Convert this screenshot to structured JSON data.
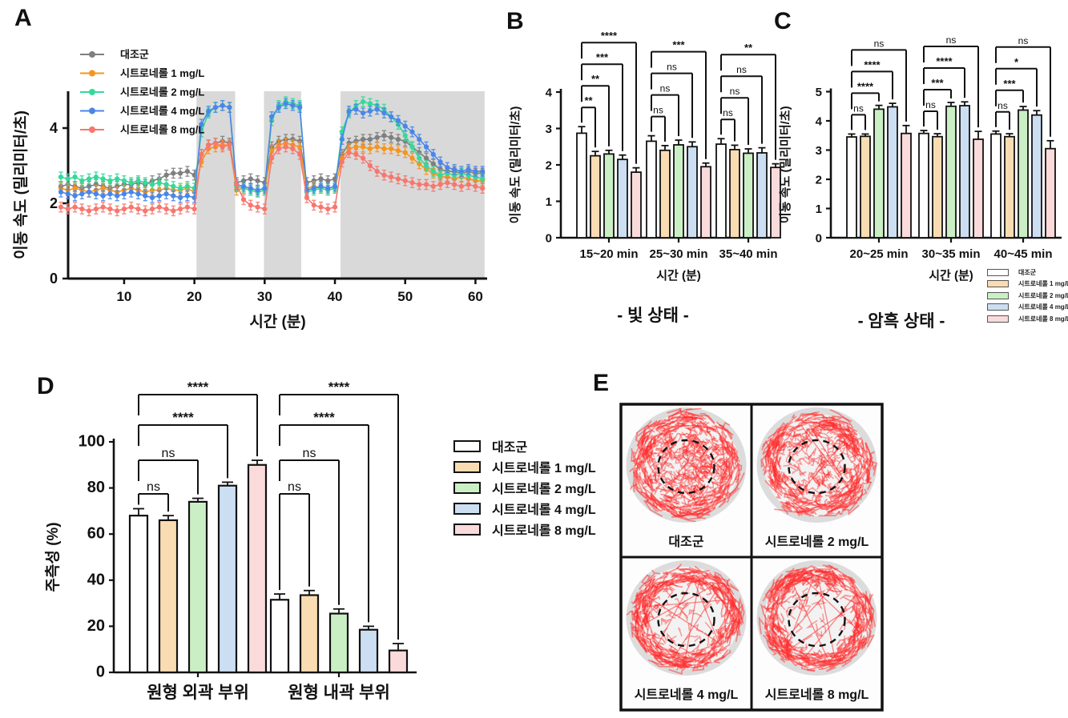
{
  "figure": {
    "panel_letters": {
      "a": "A",
      "b": "B",
      "c": "C",
      "d": "D",
      "e": "E"
    },
    "captions": {
      "b": "- 빛 상태 -",
      "c": "- 암흑 상태 -"
    },
    "legend_labels": [
      "대조군",
      "시트로네롤 1 mg/L",
      "시트로네롤 2 mg/L",
      "시트로네롤 4 mg/L",
      "시트로네롤 8 mg/L"
    ]
  },
  "colors": {
    "line": [
      "#7f7f7f",
      "#F7941D",
      "#35D999",
      "#4A86E8",
      "#F8766D"
    ],
    "bar_fill": [
      "#FFFFFF",
      "#FADCB3",
      "#CBEFC5",
      "#CCDEF2",
      "#FADADA"
    ],
    "bar_stroke": "#111111",
    "dark_band": "#d9d9d9",
    "track_red": "#ff2a2a"
  },
  "chart_data": [
    {
      "id": "A",
      "type": "line",
      "xlabel": "시간 (분)",
      "ylabel": "이동 속도 (밀리미터/초)",
      "xlim": [
        0,
        62
      ],
      "ylim": [
        0,
        5
      ],
      "xticks": [
        10,
        20,
        30,
        40,
        50,
        60
      ],
      "yticks": [
        0,
        2,
        4
      ],
      "dark_bands_min": [
        [
          20.3,
          25.8
        ],
        [
          29.9,
          35.2
        ],
        [
          40.8,
          61.3
        ]
      ],
      "x_minutes_range": [
        1,
        61
      ],
      "error": 0.13,
      "series": [
        {
          "name": "대조군",
          "values": [
            2.45,
            2.5,
            2.45,
            2.4,
            2.45,
            2.5,
            2.45,
            2.4,
            2.45,
            2.5,
            2.5,
            2.55,
            2.5,
            2.6,
            2.65,
            2.75,
            2.8,
            2.8,
            2.85,
            2.75,
            3.3,
            3.55,
            3.6,
            3.65,
            3.6,
            2.55,
            2.6,
            2.65,
            2.6,
            2.55,
            3.5,
            3.65,
            3.7,
            3.7,
            3.65,
            2.55,
            2.6,
            2.65,
            2.6,
            2.65,
            3.3,
            3.6,
            3.65,
            3.7,
            3.7,
            3.75,
            3.8,
            3.75,
            3.7,
            3.65,
            3.5,
            3.35,
            3.2,
            3.05,
            2.9,
            2.85,
            2.85,
            2.8,
            2.85,
            2.8,
            2.8
          ]
        },
        {
          "name": "시트로네롤 1 mg/L",
          "values": [
            2.4,
            2.35,
            2.4,
            2.35,
            2.3,
            2.35,
            2.4,
            2.35,
            2.3,
            2.35,
            2.4,
            2.35,
            2.3,
            2.35,
            2.35,
            2.4,
            2.35,
            2.35,
            2.4,
            2.3,
            3.1,
            3.45,
            3.5,
            3.55,
            3.55,
            2.35,
            2.4,
            2.35,
            2.3,
            2.35,
            3.4,
            3.55,
            3.6,
            3.55,
            3.5,
            2.4,
            2.45,
            2.4,
            2.35,
            2.4,
            3.2,
            3.45,
            3.5,
            3.5,
            3.45,
            3.5,
            3.45,
            3.45,
            3.4,
            3.35,
            3.2,
            3.05,
            2.9,
            2.8,
            2.7,
            2.7,
            2.65,
            2.7,
            2.65,
            2.6,
            2.6
          ]
        },
        {
          "name": "시트로네롤 2 mg/L",
          "values": [
            2.7,
            2.65,
            2.7,
            2.6,
            2.65,
            2.7,
            2.65,
            2.6,
            2.65,
            2.6,
            2.55,
            2.6,
            2.55,
            2.5,
            2.55,
            2.5,
            2.45,
            2.4,
            2.45,
            2.4,
            3.9,
            4.4,
            4.55,
            4.6,
            4.55,
            2.45,
            2.4,
            2.35,
            2.3,
            2.35,
            4.2,
            4.6,
            4.7,
            4.65,
            4.6,
            2.3,
            2.35,
            2.4,
            2.35,
            2.4,
            3.9,
            4.4,
            4.6,
            4.7,
            4.65,
            4.6,
            4.5,
            4.3,
            4.1,
            3.8,
            3.5,
            3.2,
            3.0,
            2.85,
            2.75,
            2.8,
            2.75,
            2.8,
            2.75,
            2.7,
            2.65
          ]
        },
        {
          "name": "시트로네롤 4 mg/L",
          "values": [
            2.3,
            2.25,
            2.2,
            2.25,
            2.3,
            2.25,
            2.2,
            2.25,
            2.2,
            2.25,
            2.3,
            2.25,
            2.2,
            2.15,
            2.2,
            2.25,
            2.2,
            2.15,
            2.2,
            2.15,
            4.1,
            4.45,
            4.55,
            4.6,
            4.55,
            2.5,
            2.45,
            2.4,
            2.35,
            2.4,
            4.3,
            4.55,
            4.65,
            4.6,
            4.55,
            2.35,
            2.4,
            2.45,
            2.4,
            2.45,
            3.7,
            4.45,
            4.5,
            4.4,
            4.45,
            4.5,
            4.4,
            4.3,
            4.2,
            4.05,
            3.9,
            3.7,
            3.5,
            3.3,
            3.1,
            2.95,
            2.9,
            2.85,
            2.9,
            2.85,
            2.85
          ]
        },
        {
          "name": "시트로네롤 8 mg/L",
          "values": [
            1.9,
            1.85,
            1.9,
            1.85,
            1.8,
            1.85,
            1.9,
            1.85,
            1.8,
            1.85,
            1.9,
            1.85,
            1.8,
            1.85,
            1.9,
            1.85,
            1.8,
            1.85,
            1.9,
            1.85,
            3.3,
            3.55,
            3.6,
            3.5,
            3.55,
            2.5,
            2.1,
            1.95,
            1.9,
            1.85,
            3.2,
            3.45,
            3.5,
            3.45,
            3.3,
            2.15,
            1.95,
            1.9,
            1.85,
            1.9,
            3.1,
            3.35,
            3.3,
            3.2,
            3.0,
            2.85,
            2.75,
            2.7,
            2.65,
            2.6,
            2.55,
            2.5,
            2.5,
            2.45,
            2.5,
            2.55,
            2.5,
            2.45,
            2.5,
            2.45,
            2.4
          ]
        }
      ]
    },
    {
      "id": "B",
      "type": "grouped-bar",
      "xlabel": "시간 (분)",
      "ylabel": "이동 속도 (밀리미터/초)",
      "ylim": [
        0,
        4
      ],
      "yticks": [
        0,
        1,
        2,
        3,
        4
      ],
      "categories": [
        "15~20 min",
        "25~30 min",
        "35~40 min"
      ],
      "series": [
        {
          "name": "대조군",
          "values": [
            2.87,
            2.65,
            2.57
          ],
          "errors": [
            0.18,
            0.15,
            0.15
          ]
        },
        {
          "name": "시트로네롤 1 mg/L",
          "values": [
            2.25,
            2.4,
            2.42
          ],
          "errors": [
            0.12,
            0.13,
            0.12
          ]
        },
        {
          "name": "시트로네롤 2 mg/L",
          "values": [
            2.3,
            2.55,
            2.32
          ],
          "errors": [
            0.1,
            0.13,
            0.12
          ]
        },
        {
          "name": "시트로네롤 4 mg/L",
          "values": [
            2.15,
            2.5,
            2.33
          ],
          "errors": [
            0.12,
            0.13,
            0.14
          ]
        },
        {
          "name": "시트로네롤 8 mg/L",
          "values": [
            1.8,
            1.95,
            1.93
          ],
          "errors": [
            0.12,
            0.1,
            0.1
          ]
        }
      ],
      "significance": [
        [
          "**",
          "**",
          "***",
          "****"
        ],
        [
          "ns",
          "ns",
          "ns",
          "***"
        ],
        [
          "ns",
          "ns",
          "ns",
          "**"
        ]
      ]
    },
    {
      "id": "C",
      "type": "grouped-bar",
      "xlabel": "시간 (분)",
      "ylabel": "이동 속도 (밀리미터/초)",
      "ylim": [
        0,
        5
      ],
      "yticks": [
        0,
        1,
        2,
        3,
        4,
        5
      ],
      "categories": [
        "20~25 min",
        "30~35 min",
        "40~45 min"
      ],
      "series": [
        {
          "name": "대조군",
          "values": [
            3.45,
            3.57,
            3.55
          ],
          "errors": [
            0.1,
            0.1,
            0.1
          ]
        },
        {
          "name": "시트로네롤 1 mg/L",
          "values": [
            3.47,
            3.46,
            3.46
          ],
          "errors": [
            0.08,
            0.1,
            0.1
          ]
        },
        {
          "name": "시트로네롤 2 mg/L",
          "values": [
            4.4,
            4.5,
            4.37
          ],
          "errors": [
            0.13,
            0.13,
            0.12
          ]
        },
        {
          "name": "시트로네롤 4 mg/L",
          "values": [
            4.48,
            4.52,
            4.2
          ],
          "errors": [
            0.12,
            0.13,
            0.15
          ]
        },
        {
          "name": "시트로네롤 8 mg/L",
          "values": [
            3.57,
            3.37,
            3.05
          ],
          "errors": [
            0.27,
            0.27,
            0.27
          ]
        }
      ],
      "significance": [
        [
          "ns",
          "****",
          "****",
          "ns"
        ],
        [
          "ns",
          "***",
          "****",
          "ns"
        ],
        [
          "ns",
          "***",
          "*",
          "ns"
        ]
      ]
    },
    {
      "id": "D",
      "type": "grouped-bar",
      "xlabel": "",
      "ylabel": "주측성 (%)",
      "ylim": [
        0,
        100
      ],
      "yticks": [
        0,
        20,
        40,
        60,
        80,
        100
      ],
      "categories": [
        "원형 외곽 부위",
        "원형 내곽 부위"
      ],
      "series": [
        {
          "name": "대조군",
          "values": [
            68.0,
            31.5
          ],
          "errors": [
            3.0,
            2.5
          ]
        },
        {
          "name": "시트로네롤 1 mg/L",
          "values": [
            66.0,
            33.5
          ],
          "errors": [
            2.0,
            2.0
          ]
        },
        {
          "name": "시트로네롤 2 mg/L",
          "values": [
            74.0,
            25.5
          ],
          "errors": [
            1.5,
            2.0
          ]
        },
        {
          "name": "시트로네롤 4 mg/L",
          "values": [
            81.0,
            18.5
          ],
          "errors": [
            1.5,
            1.5
          ]
        },
        {
          "name": "시트로네롤 8 mg/L",
          "values": [
            90.0,
            9.5
          ],
          "errors": [
            2.0,
            3.0
          ]
        }
      ],
      "significance": [
        [
          "ns",
          "ns",
          "****",
          "****"
        ],
        [
          "ns",
          "ns",
          "****",
          "****"
        ]
      ]
    },
    {
      "id": "E",
      "type": "image-grid",
      "cells": [
        {
          "label": "대조군",
          "center_tracks": "dense"
        },
        {
          "label": "시트로네롤 2 mg/L",
          "center_tracks": "medium"
        },
        {
          "label": "시트로네롤 4 mg/L",
          "center_tracks": "sparse"
        },
        {
          "label": "시트로네롤 8 mg/L",
          "center_tracks": "sparse"
        }
      ]
    }
  ]
}
